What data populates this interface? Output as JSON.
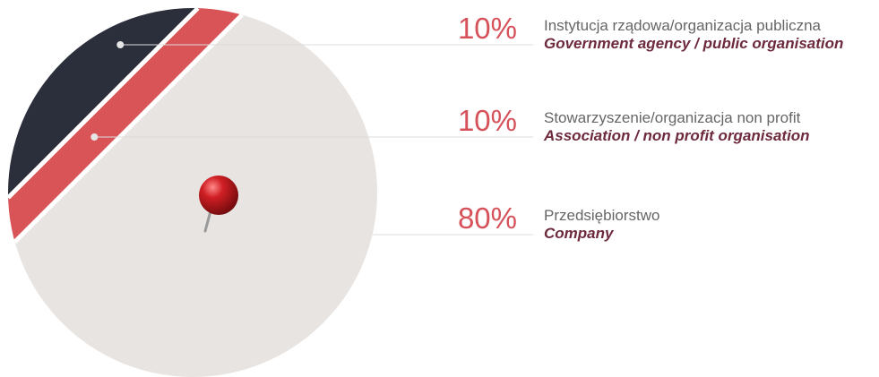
{
  "chart_data": {
    "type": "pie",
    "categories": [
      "Instytucja rządowa/organizacja publiczna",
      "Stowarzyszenie/organizacja non profit",
      "Przedsiębiorstwo"
    ],
    "category_translations": [
      "Government agency / public organisation",
      "Association / non profit organisation",
      "Company"
    ],
    "values": [
      10,
      10,
      80
    ],
    "value_labels": [
      "10%",
      "10%",
      "80%"
    ],
    "colors": [
      "#2b2e3b",
      "#d95457",
      "#e8e4e1"
    ]
  }
}
